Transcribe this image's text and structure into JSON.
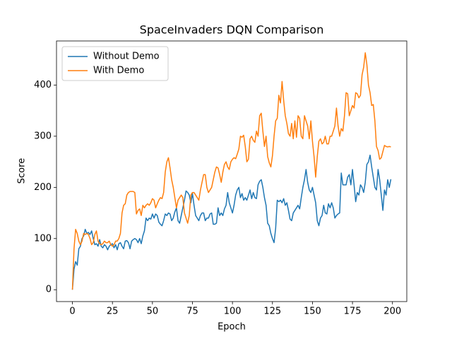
{
  "chart_data": {
    "type": "line",
    "title": "SpaceInvaders DQN Comparison",
    "xlabel": "Epoch",
    "ylabel": "Score",
    "x": [
      0,
      1,
      2,
      3,
      4,
      5,
      6,
      7,
      8,
      9,
      10,
      11,
      12,
      13,
      14,
      15,
      16,
      17,
      18,
      19,
      20,
      21,
      22,
      23,
      24,
      25,
      26,
      27,
      28,
      29,
      30,
      31,
      32,
      33,
      34,
      35,
      36,
      37,
      38,
      39,
      40,
      41,
      42,
      43,
      44,
      45,
      46,
      47,
      48,
      49,
      50,
      51,
      52,
      53,
      54,
      55,
      56,
      57,
      58,
      59,
      60,
      61,
      62,
      63,
      64,
      65,
      66,
      67,
      68,
      69,
      70,
      71,
      72,
      73,
      74,
      75,
      76,
      77,
      78,
      79,
      80,
      81,
      82,
      83,
      84,
      85,
      86,
      87,
      88,
      89,
      90,
      91,
      92,
      93,
      94,
      95,
      96,
      97,
      98,
      99,
      100,
      101,
      102,
      103,
      104,
      105,
      106,
      107,
      108,
      109,
      110,
      111,
      112,
      113,
      114,
      115,
      116,
      117,
      118,
      119,
      120,
      121,
      122,
      123,
      124,
      125,
      126,
      127,
      128,
      129,
      130,
      131,
      132,
      133,
      134,
      135,
      136,
      137,
      138,
      139,
      140,
      141,
      142,
      143,
      144,
      145,
      146,
      147,
      148,
      149,
      150,
      151,
      152,
      153,
      154,
      155,
      156,
      157,
      158,
      159,
      160,
      161,
      162,
      163,
      164,
      165,
      166,
      167,
      168,
      169,
      170,
      171,
      172,
      173,
      174,
      175,
      176,
      177,
      178,
      179,
      180,
      181,
      182,
      183,
      184,
      185,
      186,
      187,
      188,
      189,
      190,
      191,
      192,
      193,
      194,
      195,
      196,
      197,
      198,
      199
    ],
    "series": [
      {
        "name": "Without Demo",
        "color": "#1f77b4",
        "values": [
          0,
          40,
          55,
          48,
          80,
          85,
          100,
          105,
          118,
          110,
          112,
          108,
          115,
          100,
          88,
          90,
          85,
          98,
          85,
          82,
          88,
          85,
          78,
          85,
          88,
          90,
          82,
          88,
          78,
          90,
          92,
          85,
          80,
          95,
          96,
          92,
          80,
          95,
          98,
          100,
          98,
          92,
          100,
          90,
          105,
          115,
          140,
          135,
          140,
          138,
          148,
          140,
          148,
          145,
          132,
          128,
          125,
          135,
          148,
          145,
          150,
          148,
          135,
          140,
          152,
          160,
          135,
          130,
          145,
          160,
          175,
          193,
          190,
          185,
          170,
          188,
          165,
          145,
          140,
          135,
          145,
          150,
          150,
          135,
          140,
          140,
          148,
          150,
          128,
          128,
          130,
          160,
          145,
          150,
          145,
          158,
          165,
          190,
          170,
          160,
          150,
          165,
          185,
          195,
          200,
          180,
          188,
          175,
          180,
          175,
          185,
          195,
          178,
          190,
          180,
          178,
          205,
          212,
          215,
          200,
          180,
          165,
          130,
          125,
          110,
          100,
          92,
          120,
          175,
          172,
          175,
          170,
          178,
          165,
          170,
          155,
          138,
          135,
          150,
          155,
          160,
          165,
          158,
          180,
          200,
          215,
          235,
          210,
          195,
          190,
          200,
          185,
          170,
          135,
          125,
          140,
          145,
          165,
          150,
          148,
          168,
          160,
          170,
          160,
          140,
          145,
          148,
          150,
          228,
          205,
          205,
          205,
          220,
          225,
          205,
          235,
          205,
          172,
          190,
          185,
          205,
          200,
          190,
          210,
          245,
          250,
          263,
          240,
          220,
          200,
          195,
          235,
          215,
          185,
          155,
          195,
          185,
          215,
          200,
          216
        ]
      },
      {
        "name": "With Demo",
        "color": "#ff7f0e",
        "values": [
          0,
          80,
          118,
          110,
          95,
          88,
          95,
          110,
          108,
          110,
          108,
          100,
          88,
          92,
          108,
          115,
          95,
          90,
          88,
          90,
          95,
          92,
          92,
          95,
          88,
          85,
          88,
          95,
          95,
          100,
          110,
          150,
          165,
          168,
          185,
          190,
          192,
          192,
          192,
          190,
          148,
          155,
          158,
          145,
          165,
          160,
          165,
          168,
          165,
          170,
          178,
          175,
          160,
          168,
          175,
          180,
          178,
          190,
          230,
          250,
          258,
          238,
          215,
          200,
          180,
          160,
          175,
          180,
          185,
          180,
          150,
          140,
          130,
          145,
          185,
          190,
          190,
          185,
          180,
          175,
          195,
          210,
          225,
          225,
          200,
          190,
          195,
          200,
          215,
          230,
          240,
          238,
          225,
          210,
          230,
          245,
          250,
          240,
          235,
          250,
          255,
          258,
          256,
          265,
          275,
          300,
          298,
          302,
          280,
          250,
          255,
          295,
          300,
          292,
          288,
          310,
          300,
          340,
          345,
          310,
          280,
          300,
          260,
          248,
          240,
          262,
          300,
          330,
          335,
          380,
          365,
          407,
          370,
          340,
          325,
          305,
          300,
          325,
          295,
          330,
          298,
          340,
          335,
          300,
          295,
          340,
          330,
          320,
          295,
          330,
          290,
          260,
          220,
          260,
          290,
          295,
          285,
          288,
          300,
          285,
          285,
          300,
          300,
          310,
          320,
          355,
          320,
          300,
          315,
          310,
          340,
          385,
          383,
          340,
          350,
          360,
          355,
          385,
          383,
          375,
          380,
          420,
          435,
          463,
          440,
          400,
          385,
          360,
          362,
          330,
          280,
          272,
          255,
          258,
          270,
          282,
          280,
          279,
          280,
          279
        ]
      }
    ],
    "xlim": [
      -9.95,
      208.95
    ],
    "ylim": [
      -23.15,
      486.15
    ],
    "xticks": [
      0,
      25,
      50,
      75,
      100,
      125,
      150,
      175,
      200
    ],
    "yticks": [
      0,
      100,
      200,
      300,
      400
    ],
    "legend": "upper left",
    "grid": false
  }
}
